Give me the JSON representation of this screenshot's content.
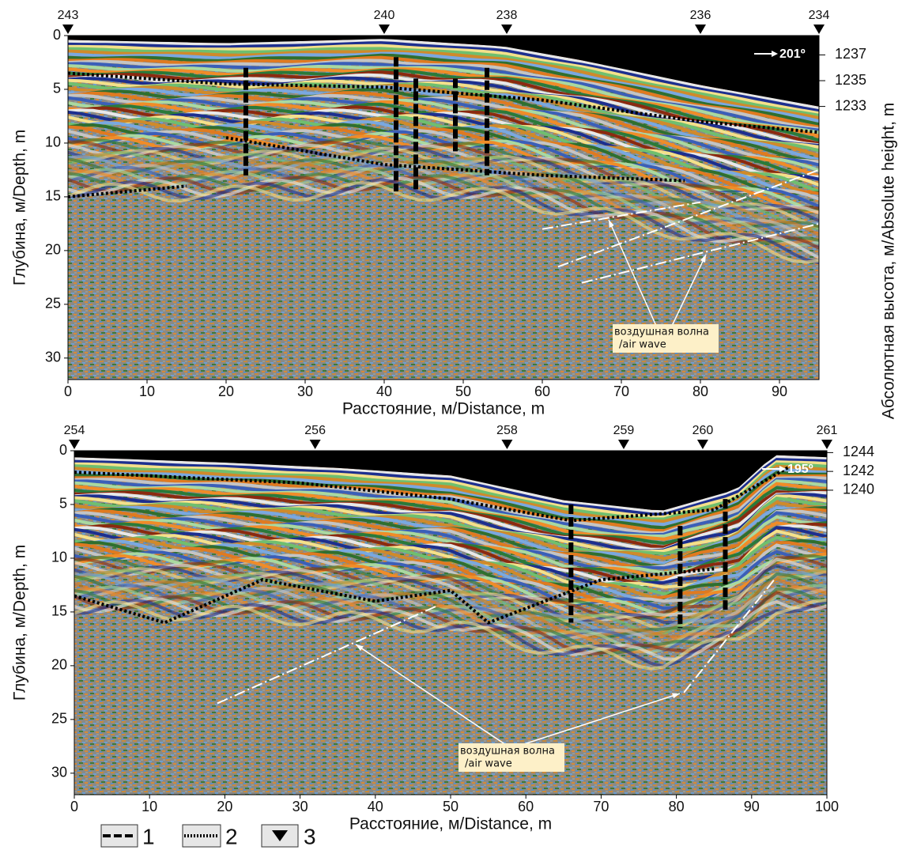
{
  "panels": [
    {
      "stations": [
        {
          "label": "243",
          "x": 0
        },
        {
          "label": "240",
          "x": 40
        },
        {
          "label": "238",
          "x": 55.5
        },
        {
          "label": "236",
          "x": 80
        },
        {
          "label": "234",
          "x": 95
        }
      ],
      "direction": "201º",
      "annotation": [
        "воздушная волна",
        "/air wave"
      ],
      "x_axis_label": "Расстояние, м/Distance, m",
      "y_axis_label": "Глубина, м/Depth, m",
      "xlim": [
        0,
        95
      ],
      "xticks": [
        0,
        10,
        20,
        30,
        40,
        50,
        60,
        70,
        80,
        90
      ],
      "ylim": [
        0,
        32
      ],
      "yticks": [
        0,
        5,
        10,
        15,
        20,
        25,
        30
      ],
      "y2lim": [
        1238.5,
        1211.8
      ],
      "y2ticks": [
        1237,
        1235,
        1233
      ]
    },
    {
      "stations": [
        {
          "label": "254",
          "x": 0
        },
        {
          "label": "256",
          "x": 32
        },
        {
          "label": "258",
          "x": 57.5
        },
        {
          "label": "259",
          "x": 73
        },
        {
          "label": "260",
          "x": 83.5
        },
        {
          "label": "261",
          "x": 100
        }
      ],
      "direction": "195º",
      "annotation": [
        "воздушная волна",
        "/air wave"
      ],
      "x_axis_label": "Расстояние, м/Distance, m",
      "y_axis_label": "Глубина, м/Depth, m",
      "xlim": [
        0,
        100
      ],
      "xticks": [
        0,
        10,
        20,
        30,
        40,
        50,
        60,
        70,
        80,
        90,
        100
      ],
      "ylim": [
        0,
        32
      ],
      "yticks": [
        0,
        5,
        10,
        15,
        20,
        25,
        30
      ],
      "y2lim": [
        1244.2,
        1207.6
      ],
      "y2ticks": [
        1244,
        1242,
        1240
      ]
    }
  ],
  "y2_axis_label": "Абсолютная высота, м/Absolute height, m",
  "legend": [
    "1",
    "2",
    "3"
  ]
}
